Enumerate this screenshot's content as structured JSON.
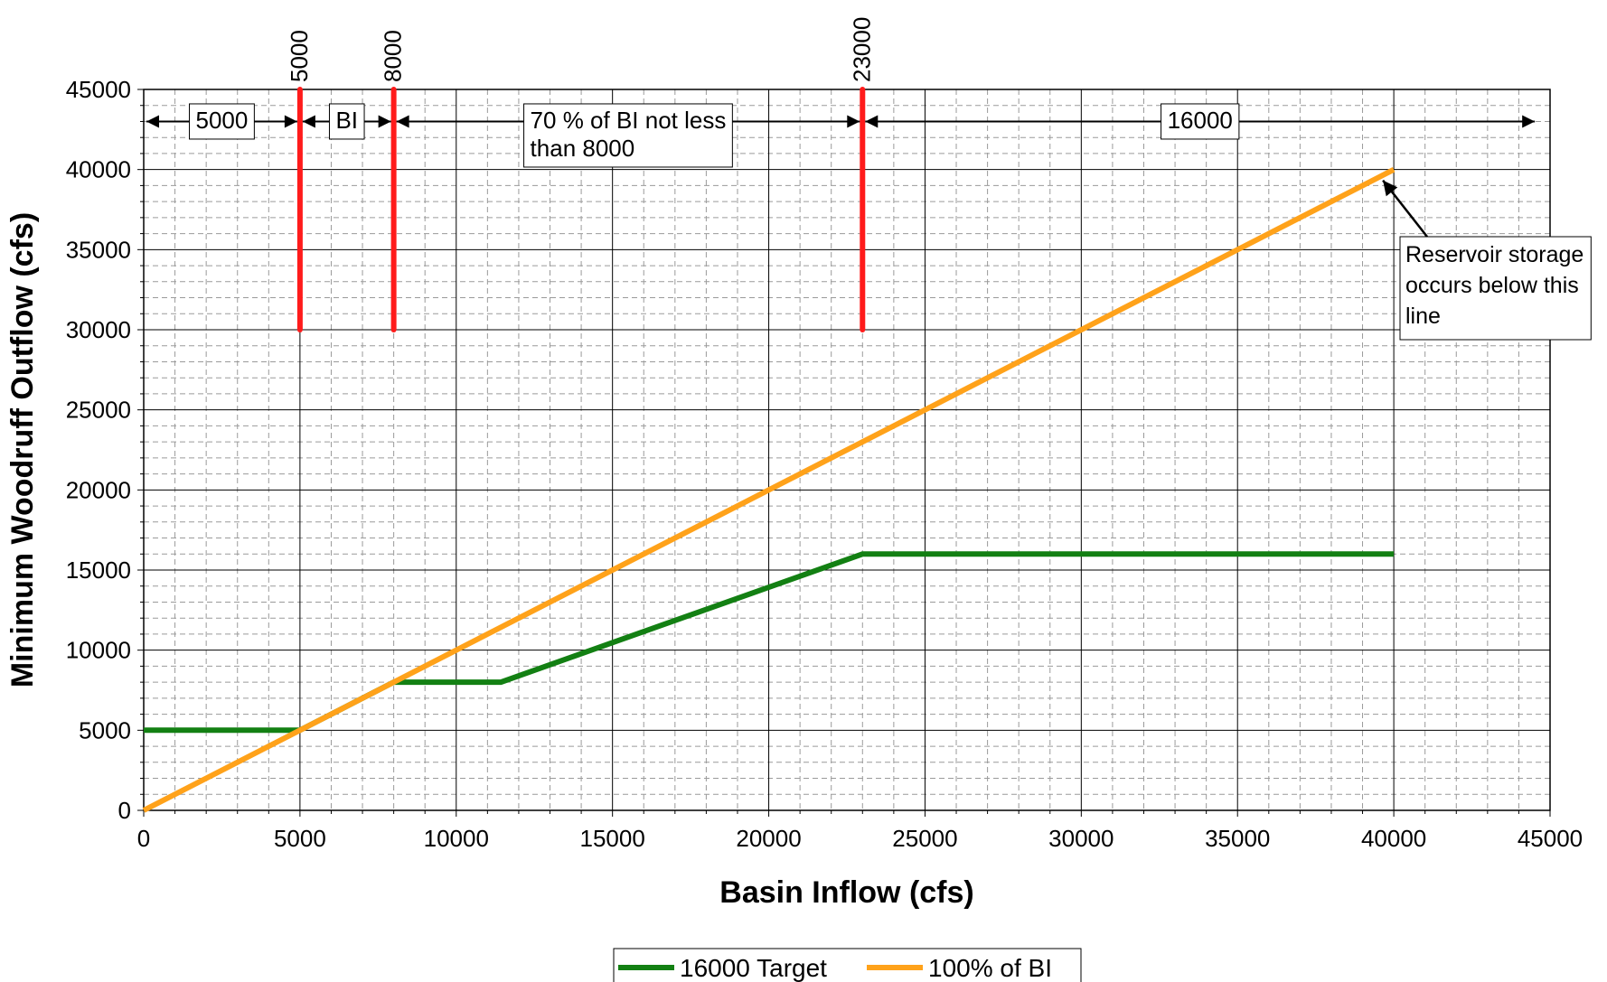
{
  "chart_data": {
    "type": "line",
    "xlabel": "Basin Inflow (cfs)",
    "ylabel": "Minimum Woodruff Outflow (cfs)",
    "xlim": [
      0,
      45000
    ],
    "ylim": [
      0,
      45000
    ],
    "x_ticks": [
      "0",
      "5000",
      "10000",
      "15000",
      "20000",
      "25000",
      "30000",
      "35000",
      "40000",
      "45000"
    ],
    "y_ticks": [
      "0",
      "5000",
      "10000",
      "15000",
      "20000",
      "25000",
      "30000",
      "35000",
      "40000",
      "45000"
    ],
    "grid": "major and minor, dashed minor",
    "legend_position": "bottom-center",
    "series": [
      {
        "name": "16000 Target",
        "color": "#138013",
        "points": [
          [
            0,
            5000
          ],
          [
            5000,
            5000
          ],
          [
            8000,
            8000
          ],
          [
            11430,
            8000
          ],
          [
            23000,
            16000
          ],
          [
            40000,
            16000
          ]
        ]
      },
      {
        "name": "100% of BI",
        "color": "#ffa21a",
        "points": [
          [
            0,
            0
          ],
          [
            40000,
            40000
          ]
        ]
      }
    ],
    "threshold_lines": {
      "color": "#ff1b1b",
      "y_range": [
        30000,
        45000
      ],
      "items": [
        {
          "x": 5000,
          "label": "5000"
        },
        {
          "x": 8000,
          "label": "8000"
        },
        {
          "x": 23000,
          "label": "23000"
        }
      ]
    },
    "range_annotations": {
      "y": 43000,
      "items": [
        {
          "label": "5000",
          "x_from": 0,
          "x_to": 5000
        },
        {
          "label": "BI",
          "x_from": 5000,
          "x_to": 8000
        },
        {
          "label_lines": [
            "70 % of BI not less",
            "than 8000"
          ],
          "x_from": 8000,
          "x_to": 23000
        },
        {
          "label": "16000",
          "x_from": 23000,
          "x_to": 44600
        }
      ]
    },
    "callout": {
      "lines": [
        "Reservoir storage",
        "occurs below this",
        "line"
      ],
      "points_to": [
        40000,
        40000
      ]
    }
  }
}
